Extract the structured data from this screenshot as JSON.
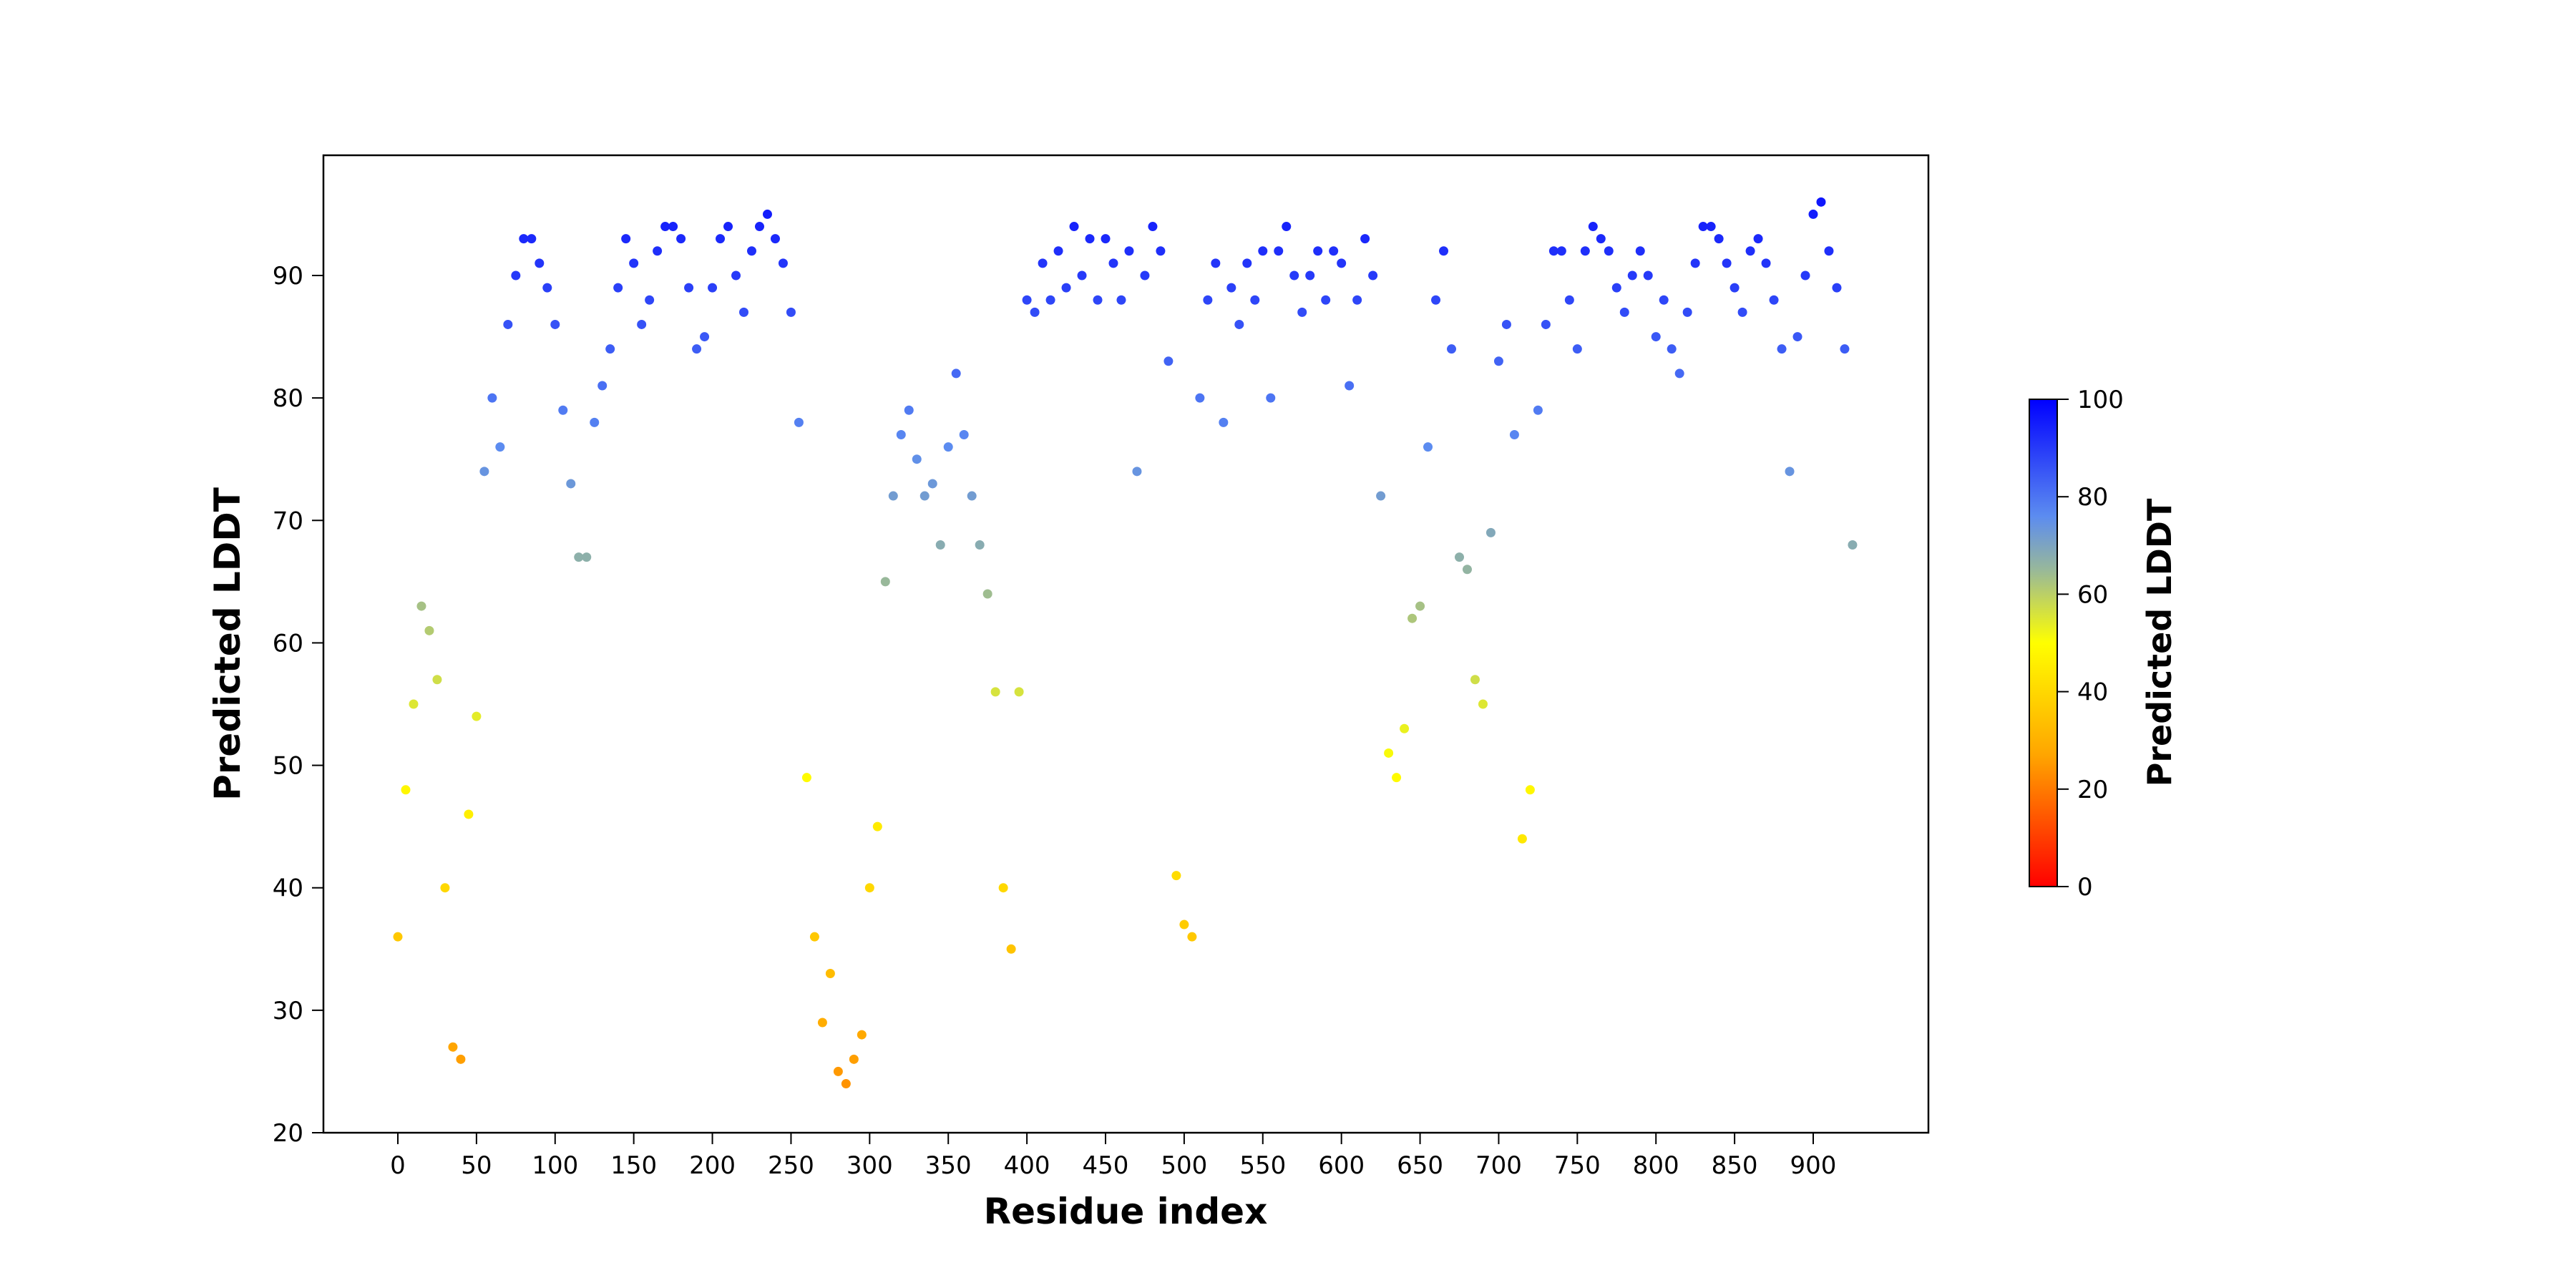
{
  "chart_data": {
    "type": "scatter",
    "title": "",
    "xlabel": "Residue index",
    "ylabel": "Predicted LDDT",
    "xlim": [
      -50,
      970
    ],
    "ylim": [
      20,
      100
    ],
    "x_ticks": [
      0,
      50,
      100,
      150,
      200,
      250,
      300,
      350,
      400,
      450,
      500,
      550,
      600,
      650,
      700,
      750,
      800,
      850,
      900
    ],
    "y_ticks": [
      20,
      30,
      40,
      50,
      60,
      70,
      80,
      90
    ],
    "grid": false,
    "colorbar": {
      "label": "Predicted LDDT",
      "range": [
        0,
        100
      ],
      "ticks": [
        0,
        20,
        40,
        60,
        80,
        100
      ],
      "colormap_stops": [
        {
          "value": 0,
          "color": "#ff0000"
        },
        {
          "value": 27,
          "color": "#ffa500"
        },
        {
          "value": 50,
          "color": "#ffff00"
        },
        {
          "value": 65,
          "color": "#98b89a"
        },
        {
          "value": 76,
          "color": "#5c8cf0"
        },
        {
          "value": 100,
          "color": "#0000ff"
        }
      ]
    },
    "x": [
      0,
      5,
      10,
      15,
      20,
      25,
      30,
      35,
      40,
      45,
      50,
      55,
      60,
      65,
      70,
      75,
      80,
      85,
      90,
      95,
      100,
      105,
      110,
      115,
      120,
      125,
      130,
      135,
      140,
      145,
      150,
      155,
      160,
      165,
      170,
      175,
      180,
      185,
      190,
      195,
      200,
      205,
      210,
      215,
      220,
      225,
      230,
      235,
      240,
      245,
      250,
      255,
      260,
      265,
      270,
      275,
      280,
      285,
      290,
      295,
      300,
      305,
      310,
      315,
      320,
      325,
      330,
      335,
      340,
      345,
      350,
      355,
      360,
      365,
      370,
      375,
      380,
      385,
      390,
      395,
      400,
      405,
      410,
      415,
      420,
      425,
      430,
      435,
      440,
      445,
      450,
      455,
      460,
      465,
      470,
      475,
      480,
      485,
      490,
      495,
      500,
      505,
      510,
      515,
      520,
      525,
      530,
      535,
      540,
      545,
      550,
      555,
      560,
      565,
      570,
      575,
      580,
      585,
      590,
      595,
      600,
      605,
      610,
      615,
      620,
      625,
      630,
      635,
      640,
      645,
      650,
      655,
      660,
      665,
      670,
      675,
      680,
      685,
      690,
      695,
      700,
      705,
      710,
      715,
      720,
      725,
      730,
      735,
      740,
      745,
      750,
      755,
      760,
      765,
      770,
      775,
      780,
      785,
      790,
      795,
      800,
      805,
      810,
      815,
      820,
      825,
      830,
      835,
      840,
      845,
      850,
      855,
      860,
      865,
      870,
      875,
      880,
      885,
      890,
      895,
      900,
      905,
      910,
      915,
      920,
      925
    ],
    "y": [
      36,
      48,
      55,
      63,
      61,
      57,
      40,
      27,
      26,
      46,
      54,
      74,
      80,
      76,
      86,
      90,
      93,
      93,
      91,
      89,
      86,
      79,
      73,
      67,
      67,
      78,
      81,
      84,
      89,
      93,
      91,
      86,
      88,
      92,
      94,
      94,
      93,
      89,
      84,
      85,
      89,
      93,
      94,
      90,
      87,
      92,
      94,
      95,
      93,
      91,
      87,
      78,
      49,
      36,
      29,
      33,
      25,
      24,
      26,
      28,
      40,
      45,
      65,
      72,
      77,
      79,
      75,
      72,
      73,
      68,
      76,
      82,
      77,
      72,
      68,
      64,
      56,
      40,
      35,
      56,
      88,
      87,
      91,
      88,
      92,
      89,
      94,
      90,
      93,
      88,
      93,
      91,
      88,
      92,
      74,
      90,
      94,
      92,
      83,
      41,
      37,
      36,
      80,
      88,
      91,
      78,
      89,
      86,
      91,
      88,
      92,
      80,
      92,
      94,
      90,
      87,
      90,
      92,
      88,
      92,
      91,
      81,
      88,
      93,
      90,
      72,
      51,
      49,
      53,
      62,
      63,
      76,
      88,
      92,
      84,
      67,
      66,
      57,
      55,
      69,
      83,
      86,
      77,
      44,
      48,
      79,
      86,
      92,
      92,
      88,
      84,
      92,
      94,
      93,
      92,
      89,
      87,
      90,
      92,
      90,
      85,
      88,
      84,
      82,
      87,
      91,
      94,
      94,
      93,
      91,
      89,
      87,
      92,
      93,
      91,
      88,
      84,
      74,
      85,
      90,
      95,
      96,
      92,
      89,
      84,
      68
    ]
  }
}
